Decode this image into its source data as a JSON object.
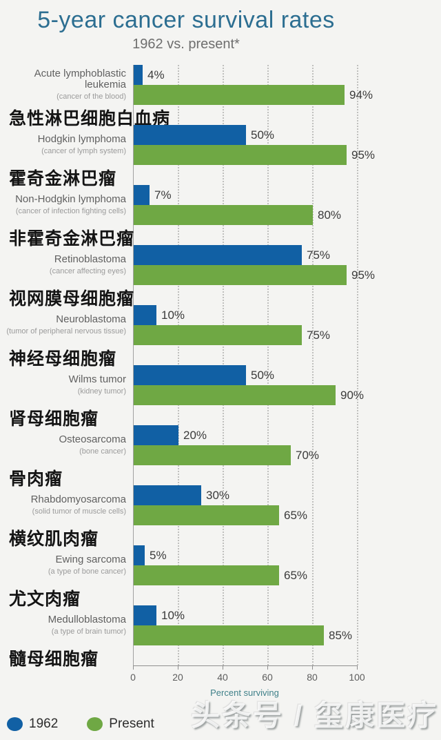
{
  "header": {
    "title": "5-year cancer survival rates",
    "subtitle": "1962 vs. present*"
  },
  "chart_data": {
    "type": "bar",
    "orientation": "horizontal",
    "title": "5-year cancer survival rates",
    "subtitle": "1962 vs. present*",
    "xlabel": "Percent surviving",
    "xlim": [
      0,
      100
    ],
    "xticks": [
      0,
      20,
      40,
      60,
      80,
      100
    ],
    "grid": "vertical-dotted",
    "legend_position": "bottom-left",
    "value_suffix": "%",
    "categories": [
      {
        "en": "Acute lymphoblastic leukemia",
        "sub": "(cancer of the blood)",
        "zh": "急性淋巴细胞白血病"
      },
      {
        "en": "Hodgkin lymphoma",
        "sub": "(cancer of lymph system)",
        "zh": "霍奇金淋巴瘤"
      },
      {
        "en": "Non-Hodgkin lymphoma",
        "sub": "(cancer of infection fighting cells)",
        "zh": "非霍奇金淋巴瘤"
      },
      {
        "en": "Retinoblastoma",
        "sub": "(cancer affecting eyes)",
        "zh": "视网膜母细胞瘤"
      },
      {
        "en": "Neuroblastoma",
        "sub": "(tumor of peripheral nervous tissue)",
        "zh": "神经母细胞瘤"
      },
      {
        "en": "Wilms tumor",
        "sub": "(kidney tumor)",
        "zh": "肾母细胞瘤"
      },
      {
        "en": "Osteosarcoma",
        "sub": "(bone cancer)",
        "zh": "骨肉瘤"
      },
      {
        "en": "Rhabdomyosarcoma",
        "sub": "(solid tumor of muscle cells)",
        "zh": "横纹肌肉瘤"
      },
      {
        "en": "Ewing sarcoma",
        "sub": "(a type of bone cancer)",
        "zh": "尤文肉瘤"
      },
      {
        "en": "Medulloblastoma",
        "sub": "(a type of brain tumor)",
        "zh": "髓母细胞瘤"
      }
    ],
    "series": [
      {
        "name": "1962",
        "color": "#1160a4",
        "values": [
          4,
          50,
          7,
          75,
          10,
          50,
          20,
          30,
          5,
          10
        ]
      },
      {
        "name": "Present",
        "color": "#6fa844",
        "values": [
          94,
          95,
          80,
          95,
          75,
          90,
          70,
          65,
          65,
          85
        ]
      }
    ]
  },
  "legend": {
    "items": [
      {
        "label": "1962",
        "color": "#1160a4"
      },
      {
        "label": "Present",
        "color": "#6fa844"
      }
    ]
  },
  "watermark": "头条号 / 玺康医疗",
  "colors": {
    "bar_1962": "#1160a4",
    "bar_present": "#6fa844",
    "title_text": "#2c6e91",
    "axis_label_text": "#3f8089",
    "background": "#f4f4f2"
  }
}
